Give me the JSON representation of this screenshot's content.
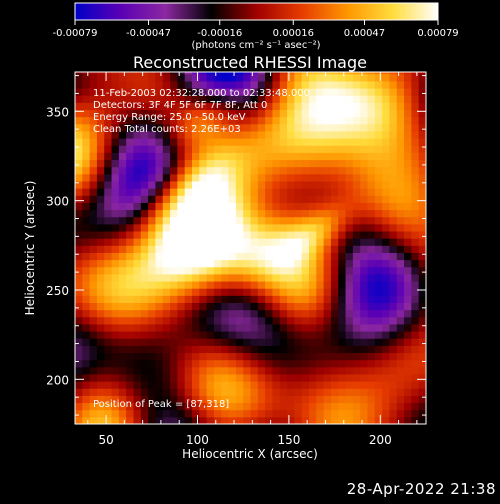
{
  "chart_data": {
    "type": "heatmap",
    "title": "Reconstructed RHESSI Image",
    "xlabel": "Heliocentric X (arcsec)",
    "ylabel": "Heliocentric Y (arcsec)",
    "xlim": [
      33,
      225
    ],
    "ylim": [
      175,
      372
    ],
    "x_ticks": [
      50,
      100,
      150,
      200
    ],
    "y_ticks": [
      200,
      250,
      300,
      350
    ],
    "x_tick_labels": [
      "50",
      "100",
      "150",
      "200"
    ],
    "y_tick_labels": [
      "200",
      "250",
      "300",
      "350"
    ],
    "colorbar": {
      "min": -0.00079,
      "max": 0.00079,
      "ticks": [
        -0.00079,
        -0.00047,
        -0.00016,
        0.00016,
        0.00047,
        0.00079
      ],
      "tick_labels": [
        "-0.00079",
        "-0.00047",
        "-0.00016",
        "0.00016",
        "0.00047",
        "0.00079"
      ],
      "units_label": "(photons cm⁻² s⁻¹ asec⁻²)",
      "colormap_stops": [
        "#0000c8",
        "#5a00b4",
        "#8c28a0",
        "#000000",
        "#a00000",
        "#e63c00",
        "#ff9600",
        "#ffdc3c",
        "#ffffff"
      ]
    },
    "annotations": [
      "11-Feb-2003 02:32:28.000 to 02:33:48.000",
      "Detectors: 3F 4F 5F 6F 7F 8F, Att 0",
      "Energy Range: 25.0 - 50.0 keV",
      "Clean    Total counts: 2.26E+03"
    ],
    "peak_label": "Position of Peak = [87,318]",
    "peak": [
      87,
      318
    ],
    "bright_features": [
      {
        "x": [
          70,
          120
        ],
        "y": [
          285,
          330
        ],
        "level": 0.95
      },
      {
        "x": [
          120,
          170
        ],
        "y": [
          250,
          300
        ],
        "level": 0.9
      },
      {
        "x": [
          150,
          185
        ],
        "y": [
          270,
          300
        ],
        "level": 0.92
      },
      {
        "x": [
          85,
          125
        ],
        "y": [
          330,
          365
        ],
        "level": 0.85
      }
    ]
  },
  "timestamp": "28-Apr-2022 21:38"
}
